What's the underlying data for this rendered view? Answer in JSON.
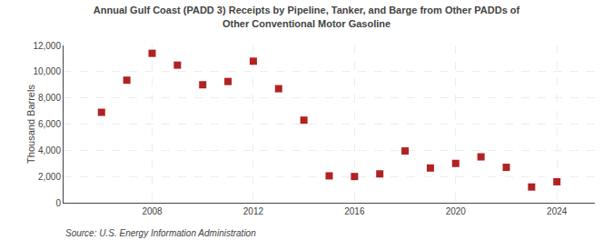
{
  "chart_data": {
    "type": "scatter",
    "title": "Annual Gulf Coast (PADD 3) Receipts by Pipeline, Tanker, and Barge from Other PADDs of\nOther Conventional Motor Gasoline",
    "ylabel": "Thousand Barrels",
    "annotations": [
      "Source: U.S. Energy Information Administration"
    ],
    "x": [
      2006,
      2007,
      2008,
      2009,
      2010,
      2011,
      2012,
      2013,
      2014,
      2015,
      2016,
      2017,
      2018,
      2019,
      2020,
      2021,
      2022,
      2023,
      2024
    ],
    "values": [
      6900,
      9350,
      11400,
      10500,
      9000,
      9250,
      10800,
      8700,
      6300,
      2050,
      2000,
      2200,
      3950,
      2650,
      3000,
      3500,
      2700,
      1200,
      1600
    ],
    "color": "#b22222",
    "marker": "square",
    "xlim": [
      2004.5,
      2025.5
    ],
    "xticks": [
      2008,
      2012,
      2016,
      2020,
      2024
    ],
    "ylim": [
      0,
      12000
    ],
    "yticks": [
      0,
      {
        "value": 2000,
        "label": "2,000"
      },
      {
        "value": 4000,
        "label": "4,000"
      },
      {
        "value": 6000,
        "label": "6,000"
      },
      {
        "value": 8000,
        "label": "8,000"
      },
      {
        "value": 10000,
        "label": "10,000"
      },
      {
        "value": 12000,
        "label": "12,000"
      }
    ],
    "grid": true
  }
}
